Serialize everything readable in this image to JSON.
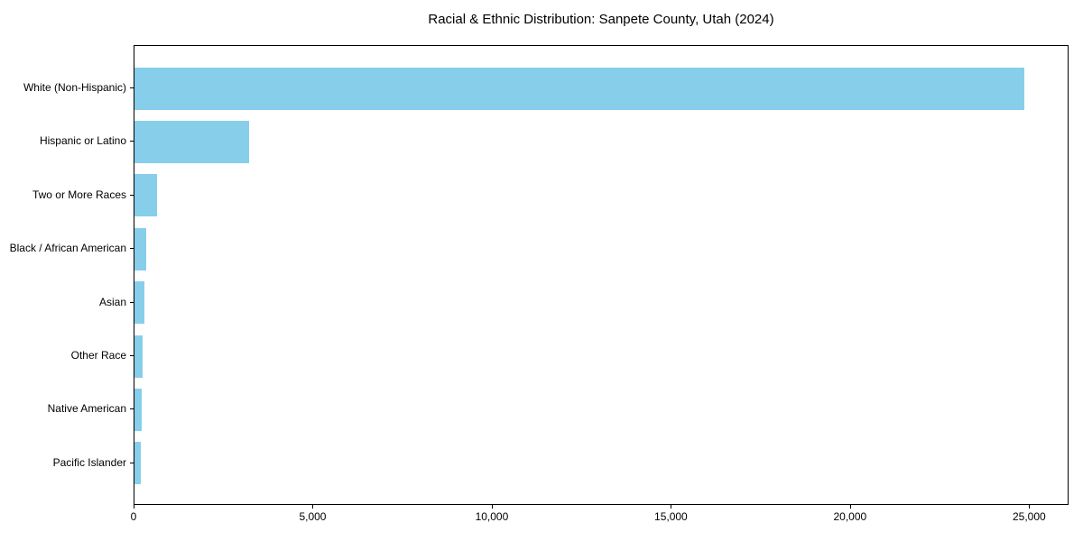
{
  "chart_data": {
    "type": "bar",
    "orientation": "horizontal",
    "title": "Racial & Ethnic Distribution: Sanpete County, Utah (2024)",
    "categories": [
      "White (Non-Hispanic)",
      "Hispanic or Latino",
      "Two or More Races",
      "Black / African American",
      "Asian",
      "Other Race",
      "Native American",
      "Pacific Islander"
    ],
    "values": [
      24880,
      3200,
      630,
      320,
      270,
      230,
      195,
      170
    ],
    "xlabel": "",
    "ylabel": "",
    "xlim": [
      0,
      26100
    ],
    "x_ticks": [
      0,
      5000,
      10000,
      15000,
      20000,
      25000
    ],
    "x_tick_labels": [
      "0",
      "5,000",
      "10,000",
      "15,000",
      "20,000",
      "25,000"
    ],
    "bar_color": "#87CEEB",
    "grid": false,
    "legend": false,
    "background_color": "#ffffff"
  }
}
